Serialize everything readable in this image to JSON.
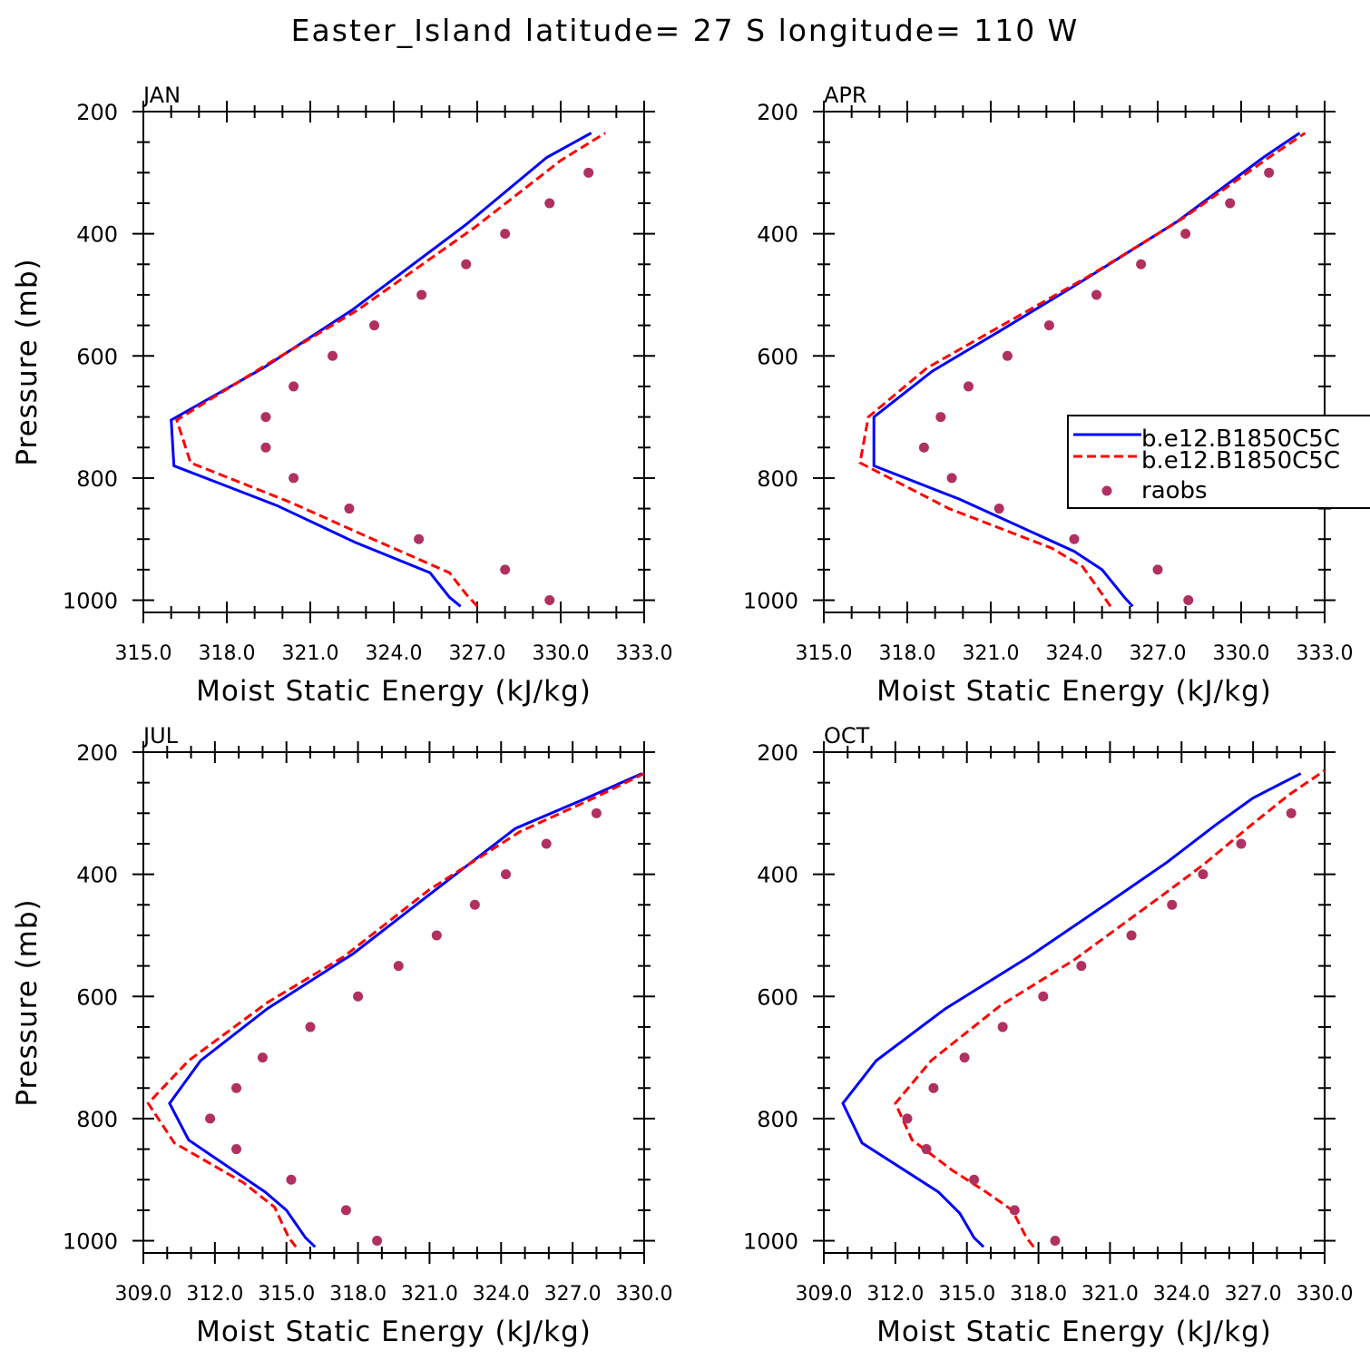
{
  "title": "Easter_Island  latitude= 27 S longitude= 110 W",
  "colors": {
    "model1": "#0000ff",
    "model2": "#ff0000",
    "raobs": "#b03060",
    "axis": "#000000"
  },
  "legend": {
    "location": "panel APR, right side",
    "entries": [
      {
        "label": "b.e12.B1850C5C",
        "style": "solid",
        "color": "#0000ff"
      },
      {
        "label": "b.e12.B1850C5C",
        "style": "dashed",
        "color": "#ff0000"
      },
      {
        "label": "raobs",
        "style": "marker",
        "color": "#b03060"
      }
    ]
  },
  "chart_data": [
    {
      "type": "line",
      "panel": "JAN",
      "xlabel": "Moist Static Energy (kJ/kg)",
      "ylabel": "Pressure (mb)",
      "xlim": [
        315,
        333
      ],
      "ylim": [
        1020,
        200
      ],
      "xticks": [
        315,
        318,
        321,
        324,
        327,
        330,
        333
      ],
      "xtick_labels": [
        "315.0",
        "318.0",
        "321.0",
        "324.0",
        "327.0",
        "330.0",
        "333.0"
      ],
      "yticks": [
        200,
        400,
        600,
        800,
        1000
      ],
      "ytick_labels": [
        "200",
        "400",
        "600",
        "800",
        "1000"
      ],
      "series": [
        {
          "name": "b.e12.B1850C5C",
          "style": "solid",
          "pressure": [
            1010,
            995,
            955,
            905,
            845,
            780,
            705,
            620,
            525,
            385,
            275,
            235
          ],
          "mse": [
            326.4,
            326.0,
            325.3,
            322.6,
            319.8,
            316.1,
            316.0,
            319.3,
            322.5,
            326.6,
            329.5,
            331.1
          ]
        },
        {
          "name": "b.e12.B1850C5C",
          "style": "dashed",
          "pressure": [
            1010,
            990,
            955,
            895,
            840,
            775,
            705,
            615,
            525,
            390,
            280,
            235
          ],
          "mse": [
            327.0,
            326.6,
            326.0,
            323.0,
            320.3,
            316.7,
            316.2,
            319.4,
            322.7,
            326.9,
            330.0,
            331.6
          ]
        },
        {
          "name": "raobs",
          "style": "marker",
          "pressure": [
            1000,
            950,
            900,
            850,
            800,
            750,
            700,
            650,
            600,
            550,
            500,
            450,
            400,
            350,
            300
          ],
          "mse": [
            329.6,
            328.0,
            324.9,
            322.4,
            320.4,
            319.4,
            319.4,
            320.4,
            321.8,
            323.3,
            325.0,
            326.6,
            328.0,
            329.6,
            331.0
          ]
        }
      ]
    },
    {
      "type": "line",
      "panel": "APR",
      "xlabel": "Moist Static Energy (kJ/kg)",
      "ylabel": "",
      "xlim": [
        315,
        333
      ],
      "ylim": [
        1020,
        200
      ],
      "xticks": [
        315,
        318,
        321,
        324,
        327,
        330,
        333
      ],
      "xtick_labels": [
        "315.0",
        "318.0",
        "321.0",
        "324.0",
        "327.0",
        "330.0",
        "333.0"
      ],
      "yticks": [
        200,
        400,
        600,
        800,
        1000
      ],
      "ytick_labels": [
        "200",
        "400",
        "600",
        "800",
        "1000"
      ],
      "series": [
        {
          "name": "b.e12.B1850C5C",
          "style": "solid",
          "pressure": [
            1010,
            995,
            950,
            920,
            835,
            780,
            700,
            625,
            560,
            480,
            380,
            275,
            235
          ],
          "mse": [
            326.1,
            325.8,
            325.0,
            324.0,
            319.9,
            316.8,
            316.8,
            318.9,
            321.3,
            324.2,
            327.7,
            330.8,
            332.1
          ]
        },
        {
          "name": "b.e12.B1850C5C",
          "style": "dashed",
          "pressure": [
            1010,
            990,
            945,
            915,
            850,
            775,
            700,
            620,
            545,
            470,
            375,
            275,
            235
          ],
          "mse": [
            325.3,
            325.0,
            324.3,
            323.2,
            319.5,
            316.3,
            316.6,
            318.7,
            321.6,
            324.5,
            327.9,
            331.0,
            332.3
          ]
        },
        {
          "name": "raobs",
          "style": "marker",
          "pressure": [
            1000,
            950,
            900,
            850,
            800,
            750,
            700,
            650,
            600,
            550,
            500,
            450,
            400,
            350,
            300
          ],
          "mse": [
            328.1,
            327.0,
            324.0,
            321.3,
            319.6,
            318.6,
            319.2,
            320.2,
            321.6,
            323.1,
            324.8,
            326.4,
            328.0,
            329.6,
            331.0
          ]
        }
      ]
    },
    {
      "type": "line",
      "panel": "JUL",
      "xlabel": "Moist Static Energy (kJ/kg)",
      "ylabel": "Pressure (mb)",
      "xlim": [
        309,
        330
      ],
      "ylim": [
        1020,
        200
      ],
      "xticks": [
        309,
        312,
        315,
        318,
        321,
        324,
        327,
        330
      ],
      "xtick_labels": [
        "309.0",
        "312.0",
        "315.0",
        "318.0",
        "321.0",
        "324.0",
        "327.0",
        "330.0"
      ],
      "yticks": [
        200,
        400,
        600,
        800,
        1000
      ],
      "ytick_labels": [
        "200",
        "400",
        "600",
        "800",
        "1000"
      ],
      "series": [
        {
          "name": "b.e12.B1850C5C",
          "style": "solid",
          "pressure": [
            1010,
            995,
            950,
            920,
            835,
            775,
            705,
            620,
            530,
            430,
            325,
            275,
            235
          ],
          "mse": [
            316.2,
            315.8,
            315.0,
            314.1,
            310.9,
            310.1,
            311.4,
            314.2,
            317.8,
            321.1,
            324.6,
            327.6,
            329.9
          ]
        },
        {
          "name": "b.e12.B1850C5C",
          "style": "dashed",
          "pressure": [
            1010,
            995,
            945,
            905,
            840,
            775,
            705,
            610,
            535,
            425,
            330,
            275,
            235
          ],
          "mse": [
            315.4,
            315.1,
            314.5,
            313.2,
            310.3,
            309.2,
            310.9,
            314.2,
            317.4,
            321.0,
            324.8,
            327.9,
            330.0
          ]
        },
        {
          "name": "raobs",
          "style": "marker",
          "pressure": [
            1000,
            950,
            900,
            850,
            800,
            750,
            700,
            650,
            600,
            550,
            500,
            450,
            400,
            350,
            300
          ],
          "mse": [
            318.8,
            317.5,
            315.2,
            312.9,
            311.8,
            312.9,
            314.0,
            316.0,
            318.0,
            319.7,
            321.3,
            322.9,
            324.2,
            325.9,
            328.0
          ]
        }
      ]
    },
    {
      "type": "line",
      "panel": "OCT",
      "xlabel": "Moist Static Energy (kJ/kg)",
      "ylabel": "",
      "xlim": [
        309,
        330
      ],
      "ylim": [
        1020,
        200
      ],
      "xticks": [
        309,
        312,
        315,
        318,
        321,
        324,
        327,
        330
      ],
      "xtick_labels": [
        "309.0",
        "312.0",
        "315.0",
        "318.0",
        "321.0",
        "324.0",
        "327.0",
        "330.0"
      ],
      "yticks": [
        200,
        400,
        600,
        800,
        1000
      ],
      "ytick_labels": [
        "200",
        "400",
        "600",
        "800",
        "1000"
      ],
      "series": [
        {
          "name": "b.e12.B1850C5C",
          "style": "solid",
          "pressure": [
            1010,
            995,
            955,
            920,
            840,
            775,
            705,
            620,
            535,
            450,
            380,
            320,
            275,
            235
          ],
          "mse": [
            315.7,
            315.3,
            314.7,
            313.8,
            310.6,
            309.8,
            311.2,
            314.1,
            317.6,
            320.8,
            323.4,
            325.4,
            327.0,
            329.0
          ]
        },
        {
          "name": "b.e12.B1850C5C",
          "style": "dashed",
          "pressure": [
            1010,
            995,
            950,
            920,
            885,
            835,
            775,
            705,
            615,
            540,
            440,
            385,
            320,
            270,
            230
          ],
          "mse": [
            317.8,
            317.5,
            316.9,
            315.8,
            314.4,
            312.7,
            312.0,
            313.5,
            316.4,
            319.5,
            323.0,
            324.9,
            326.9,
            328.5,
            330.0
          ]
        },
        {
          "name": "raobs",
          "style": "marker",
          "pressure": [
            1000,
            950,
            900,
            850,
            800,
            750,
            700,
            650,
            600,
            550,
            500,
            450,
            400,
            350,
            300
          ],
          "mse": [
            318.7,
            317.0,
            315.3,
            313.3,
            312.5,
            313.6,
            314.9,
            316.5,
            318.2,
            319.8,
            321.9,
            323.6,
            324.9,
            326.5,
            328.6
          ]
        }
      ]
    }
  ]
}
